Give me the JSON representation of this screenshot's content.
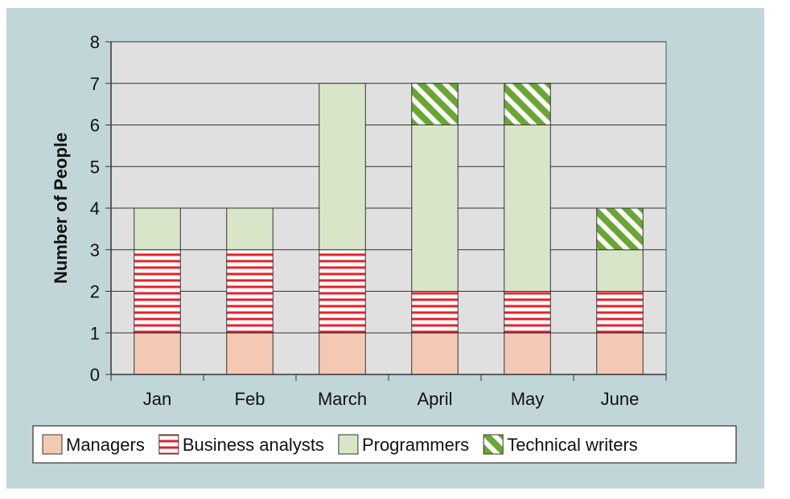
{
  "chart_data": {
    "type": "bar",
    "stacked": true,
    "categories": [
      "Jan",
      "Feb",
      "March",
      "April",
      "May",
      "June"
    ],
    "series": [
      {
        "name": "Managers",
        "values": [
          1,
          1,
          1,
          1,
          1,
          1
        ],
        "color": "#f4c9b3",
        "pattern": "solid"
      },
      {
        "name": "Business analysts",
        "values": [
          2,
          2,
          2,
          1,
          1,
          1
        ],
        "color": "#e8202a",
        "pattern": "horizontal-stripes"
      },
      {
        "name": "Programmers",
        "values": [
          1,
          1,
          4,
          4,
          4,
          1
        ],
        "color": "#d9e5c8",
        "pattern": "solid"
      },
      {
        "name": "Technical writers",
        "values": [
          0,
          0,
          0,
          1,
          1,
          1
        ],
        "color": "#6aa632",
        "pattern": "diagonal-stripes"
      }
    ],
    "xlabel": "",
    "ylabel": "Number of People",
    "ylim": [
      0,
      8
    ],
    "yticks": [
      0,
      1,
      2,
      3,
      4,
      5,
      6,
      7,
      8
    ],
    "grid": true,
    "legend": "bottom",
    "colors": {
      "panel": "#c1d6d8",
      "plot_area": "#e0e0e0"
    }
  }
}
